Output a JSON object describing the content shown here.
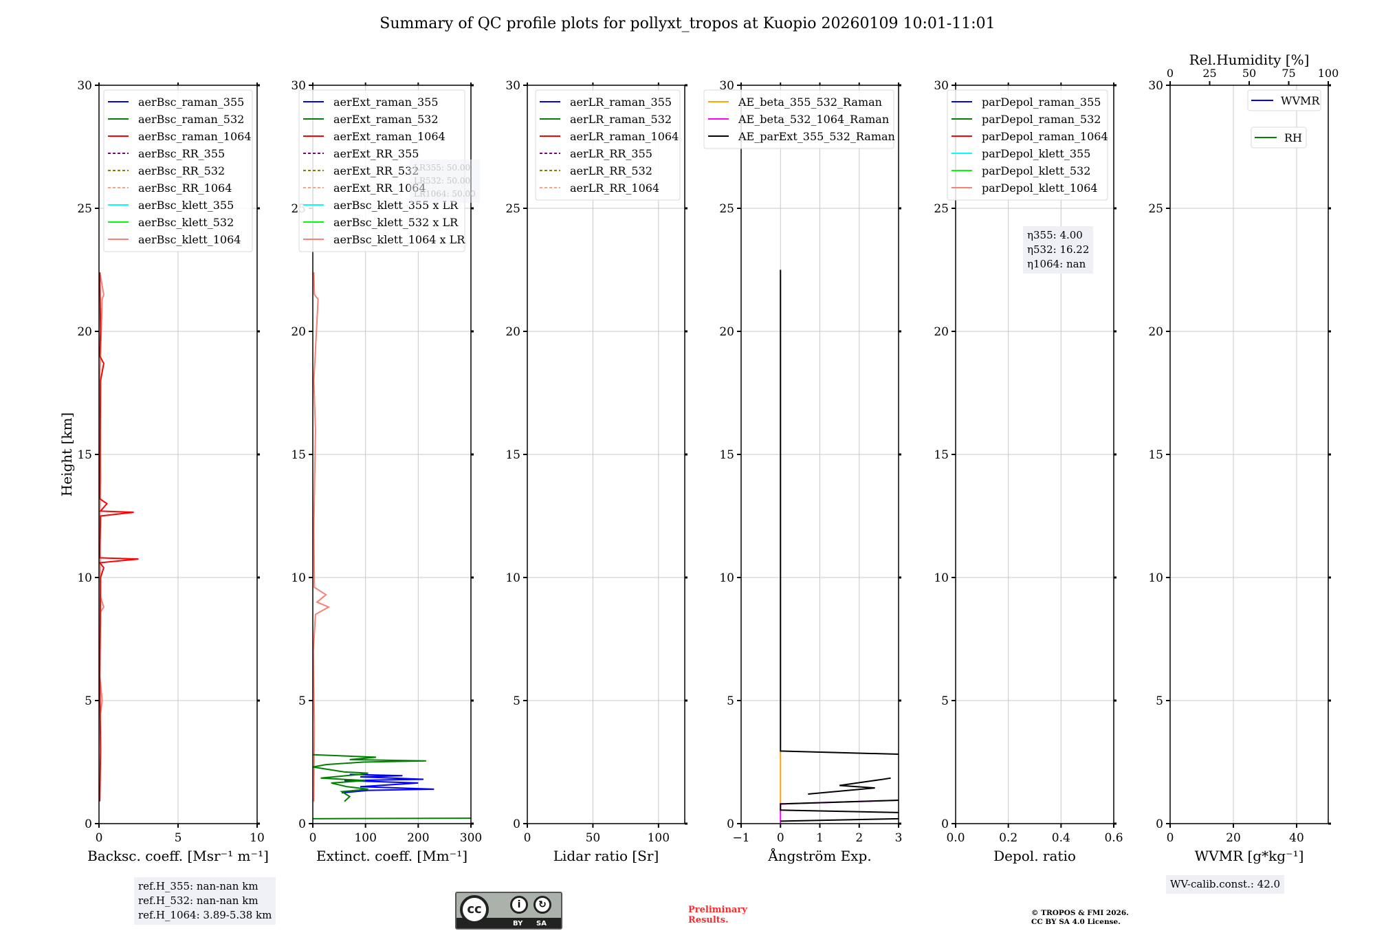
{
  "title": "Summary of QC profile plots for pollyxt_tropos at Kuopio 20260109 10:01-11:01",
  "ylabel": "Height [km]",
  "yticks": [
    0,
    5,
    10,
    15,
    20,
    25,
    30
  ],
  "annotations": {
    "refH": [
      "ref.H_355: nan-nan km",
      "ref.H_532: nan-nan km",
      "ref.H_1064: 3.89-5.38 km"
    ],
    "eta": [
      "η355: 4.00",
      "η532: 16.22",
      "η1064: nan"
    ],
    "lr": [
      "LR355: 50.00",
      "LR532: 50.00",
      "LR1064: 50.00"
    ],
    "wv_calib": "WV-calib.const.: 42.0",
    "preliminary": [
      "Preliminary",
      "Results."
    ],
    "copyright": [
      "© TROPOS & FMI 2026.",
      "CC BY SA 4.0 License."
    ],
    "cc_logo": {
      "cc": "cc",
      "by": "BY",
      "sa": "SA"
    }
  },
  "chart_data": [
    {
      "type": "line",
      "xlabel": "Backsc. coeff. [Msr⁻¹ m⁻¹]",
      "xlim": [
        0,
        10
      ],
      "xticks": [
        0,
        5,
        10
      ],
      "ylim": [
        0,
        30
      ],
      "grid": true,
      "legend_position": "top-left",
      "legend": [
        {
          "name": "aerBsc_raman_355",
          "color": "#0000ff",
          "dash": false
        },
        {
          "name": "aerBsc_raman_532",
          "color": "#008000",
          "dash": false
        },
        {
          "name": "aerBsc_raman_1064",
          "color": "#ff0000",
          "dash": false
        },
        {
          "name": "aerBsc_RR_355",
          "color": "#800080",
          "dash": true
        },
        {
          "name": "aerBsc_RR_532",
          "color": "#808000",
          "dash": true
        },
        {
          "name": "aerBsc_RR_1064",
          "color": "#ffa07a",
          "dash": true
        },
        {
          "name": "aerBsc_klett_355",
          "color": "#00ffff",
          "dash": false
        },
        {
          "name": "aerBsc_klett_532",
          "color": "#00ff00",
          "dash": false
        },
        {
          "name": "aerBsc_klett_1064",
          "color": "#fa8072",
          "dash": false
        }
      ],
      "series": [
        {
          "name": "aerBsc_klett_1064",
          "color": "#fa8072",
          "points": [
            [
              0.1,
              4.5
            ],
            [
              0.2,
              5
            ],
            [
              0.05,
              6
            ],
            [
              0.1,
              8.6
            ],
            [
              0.3,
              8.8
            ],
            [
              0.1,
              9.2
            ],
            [
              0.05,
              12
            ],
            [
              0.1,
              14
            ],
            [
              0.05,
              18
            ],
            [
              0.2,
              21.3
            ],
            [
              0.3,
              21.5
            ],
            [
              0.05,
              22.4
            ]
          ]
        },
        {
          "name": "aerBsc_raman_1064",
          "color": "#ff0000",
          "points": [
            [
              0.05,
              0.9
            ],
            [
              0.1,
              3
            ],
            [
              0.05,
              6
            ],
            [
              0.1,
              10
            ],
            [
              0.3,
              10.4
            ],
            [
              0.05,
              10.6
            ],
            [
              2.5,
              10.75
            ],
            [
              0.05,
              10.8
            ],
            [
              0.1,
              12.5
            ],
            [
              2.2,
              12.65
            ],
            [
              0.1,
              12.7
            ],
            [
              0.5,
              13.0
            ],
            [
              0.05,
              13.2
            ],
            [
              0.1,
              18
            ],
            [
              0.3,
              18.7
            ],
            [
              0.05,
              19
            ],
            [
              0.1,
              20
            ],
            [
              0.05,
              22.4
            ]
          ]
        }
      ]
    },
    {
      "type": "line",
      "xlabel": "Extinct. coeff. [Mm⁻¹]",
      "xlim": [
        0,
        300
      ],
      "xticks": [
        0,
        100,
        200,
        300
      ],
      "ylim": [
        0,
        30
      ],
      "grid": true,
      "legend_position": "top-left",
      "legend": [
        {
          "name": "aerExt_raman_355",
          "color": "#0000ff",
          "dash": false
        },
        {
          "name": "aerExt_raman_532",
          "color": "#008000",
          "dash": false
        },
        {
          "name": "aerExt_raman_1064",
          "color": "#ff0000",
          "dash": false
        },
        {
          "name": "aerExt_RR_355",
          "color": "#800080",
          "dash": true
        },
        {
          "name": "aerExt_RR_532",
          "color": "#808000",
          "dash": true
        },
        {
          "name": "aerExt_RR_1064",
          "color": "#ffa07a",
          "dash": true
        },
        {
          "name": "aerBsc_klett_355 x LR",
          "color": "#00ffff",
          "dash": false
        },
        {
          "name": "aerBsc_klett_532 x LR",
          "color": "#00ff00",
          "dash": false
        },
        {
          "name": "aerBsc_klett_1064 x LR",
          "color": "#fa8072",
          "dash": false
        }
      ],
      "series": [
        {
          "name": "aerBsc_klett_1064 x LR",
          "color": "#fa8072",
          "points": [
            [
              2,
              0.9
            ],
            [
              3,
              4
            ],
            [
              1,
              7
            ],
            [
              5,
              8.5
            ],
            [
              30,
              8.8
            ],
            [
              8,
              9.0
            ],
            [
              25,
              9.3
            ],
            [
              3,
              9.6
            ],
            [
              2,
              12
            ],
            [
              5,
              16
            ],
            [
              2,
              18
            ],
            [
              10,
              21.3
            ],
            [
              3,
              21.5
            ],
            [
              2,
              22.4
            ]
          ]
        },
        {
          "name": "aerExt_raman_355",
          "color": "#0000ff",
          "points": [
            [
              55,
              1.25
            ],
            [
              105,
              1.35
            ],
            [
              230,
              1.4
            ],
            [
              90,
              1.5
            ],
            [
              200,
              1.65
            ],
            [
              60,
              1.75
            ],
            [
              210,
              1.8
            ],
            [
              90,
              1.9
            ],
            [
              170,
              1.95
            ],
            [
              70,
              2.0
            ]
          ]
        },
        {
          "name": "aerExt_raman_532",
          "color": "#008000",
          "points": [
            [
              60,
              0.9
            ],
            [
              70,
              1.1
            ],
            [
              55,
              1.3
            ],
            [
              105,
              1.4
            ],
            [
              65,
              1.5
            ],
            [
              35,
              1.65
            ],
            [
              100,
              1.75
            ],
            [
              15,
              1.85
            ],
            [
              90,
              2.0
            ],
            [
              105,
              2.05
            ],
            [
              60,
              2.1
            ],
            [
              0,
              2.3
            ],
            [
              25,
              2.4
            ],
            [
              95,
              2.5
            ],
            [
              215,
              2.55
            ],
            [
              70,
              2.6
            ],
            [
              120,
              2.7
            ],
            [
              0,
              2.8
            ]
          ]
        },
        {
          "name": "aerExt_raman_532_low",
          "color": "#008000",
          "points": [
            [
              0,
              0.2
            ],
            [
              300,
              0.22
            ]
          ]
        }
      ]
    },
    {
      "type": "line",
      "xlabel": "Lidar ratio [Sr]",
      "xlim": [
        0,
        120
      ],
      "xticks": [
        0,
        50,
        100
      ],
      "ylim": [
        0,
        30
      ],
      "grid": true,
      "legend_position": "top-left",
      "legend": [
        {
          "name": "aerLR_raman_355",
          "color": "#0000ff",
          "dash": false
        },
        {
          "name": "aerLR_raman_532",
          "color": "#008000",
          "dash": false
        },
        {
          "name": "aerLR_raman_1064",
          "color": "#ff0000",
          "dash": false
        },
        {
          "name": "aerLR_RR_355",
          "color": "#800080",
          "dash": true
        },
        {
          "name": "aerLR_RR_532",
          "color": "#808000",
          "dash": true
        },
        {
          "name": "aerLR_RR_1064",
          "color": "#ffa07a",
          "dash": true
        }
      ],
      "series": []
    },
    {
      "type": "line",
      "xlabel": "Ångström Exp.",
      "xlim": [
        -1,
        3
      ],
      "xticks": [
        -1,
        0,
        1,
        2,
        3
      ],
      "xticklabels": [
        "−1",
        "0",
        "1",
        "2",
        "3"
      ],
      "ylim": [
        0,
        30
      ],
      "grid": true,
      "legend_position": "top-left",
      "legend": [
        {
          "name": "AE_beta_355_532_Raman",
          "color": "#ffa500",
          "dash": false
        },
        {
          "name": "AE_beta_532_1064_Raman",
          "color": "#ff00ff",
          "dash": false
        },
        {
          "name": "AE_parExt_355_532_Raman",
          "color": "#000000",
          "dash": false
        }
      ],
      "series": [
        {
          "name": "AE_beta_355_532_Raman",
          "color": "#ffa500",
          "points": [
            [
              0,
              0.8
            ],
            [
              0,
              2.95
            ]
          ]
        },
        {
          "name": "AE_beta_532_1064_Raman",
          "color": "#ff00ff",
          "points": [
            [
              0,
              0
            ],
            [
              0,
              0.5
            ],
            [
              0,
              0.8
            ],
            [
              3,
              0.95
            ]
          ]
        },
        {
          "name": "AE_parExt_355_532_Raman",
          "color": "#000000",
          "points": [
            [
              0,
              22.5
            ],
            [
              0,
              2.95
            ],
            [
              3,
              2.82
            ]
          ]
        },
        {
          "name": "AE_parExt_355_532_Raman_2",
          "color": "#000000",
          "points": [
            [
              2.8,
              1.85
            ],
            [
              2.6,
              1.8
            ],
            [
              1.5,
              1.55
            ],
            [
              2.4,
              1.45
            ],
            [
              0.7,
              1.2
            ]
          ]
        },
        {
          "name": "AE_parExt_355_532_Raman_3",
          "color": "#000000",
          "points": [
            [
              3,
              0.95
            ],
            [
              0,
              0.8
            ],
            [
              0,
              0.55
            ],
            [
              3,
              0.45
            ]
          ]
        },
        {
          "name": "AE_parExt_355_532_Raman_4",
          "color": "#000000",
          "points": [
            [
              0,
              0.1
            ],
            [
              3,
              0.2
            ]
          ]
        }
      ]
    },
    {
      "type": "line",
      "xlabel": "Depol. ratio",
      "xlim": [
        0,
        0.6
      ],
      "xticks": [
        0,
        0.2,
        0.4,
        0.6
      ],
      "xticklabels": [
        "0.0",
        "0.2",
        "0.4",
        "0.6"
      ],
      "ylim": [
        0,
        30
      ],
      "grid": true,
      "legend_position": "top-left",
      "legend": [
        {
          "name": "parDepol_raman_355",
          "color": "#0000ff",
          "dash": false
        },
        {
          "name": "parDepol_raman_532",
          "color": "#008000",
          "dash": false
        },
        {
          "name": "parDepol_raman_1064",
          "color": "#ff0000",
          "dash": false
        },
        {
          "name": "parDepol_klett_355",
          "color": "#00ffff",
          "dash": false
        },
        {
          "name": "parDepol_klett_532",
          "color": "#00ff00",
          "dash": false
        },
        {
          "name": "parDepol_klett_1064",
          "color": "#fa8072",
          "dash": false
        }
      ],
      "series": []
    },
    {
      "type": "line",
      "xlabel": "WVMR [g*kg⁻¹]",
      "xlim": [
        0,
        50
      ],
      "xticks": [
        0,
        20,
        40
      ],
      "ylim": [
        0,
        30
      ],
      "grid": true,
      "top_axis": {
        "label": "Rel.Humidity [%]",
        "xlim": [
          0,
          100
        ],
        "xticks": [
          0,
          25,
          50,
          75,
          100
        ]
      },
      "legend": [
        {
          "name": "WVMR",
          "color": "#0000ff",
          "dash": false
        },
        {
          "name": "RH",
          "color": "#008000",
          "dash": false
        }
      ],
      "series": []
    }
  ]
}
